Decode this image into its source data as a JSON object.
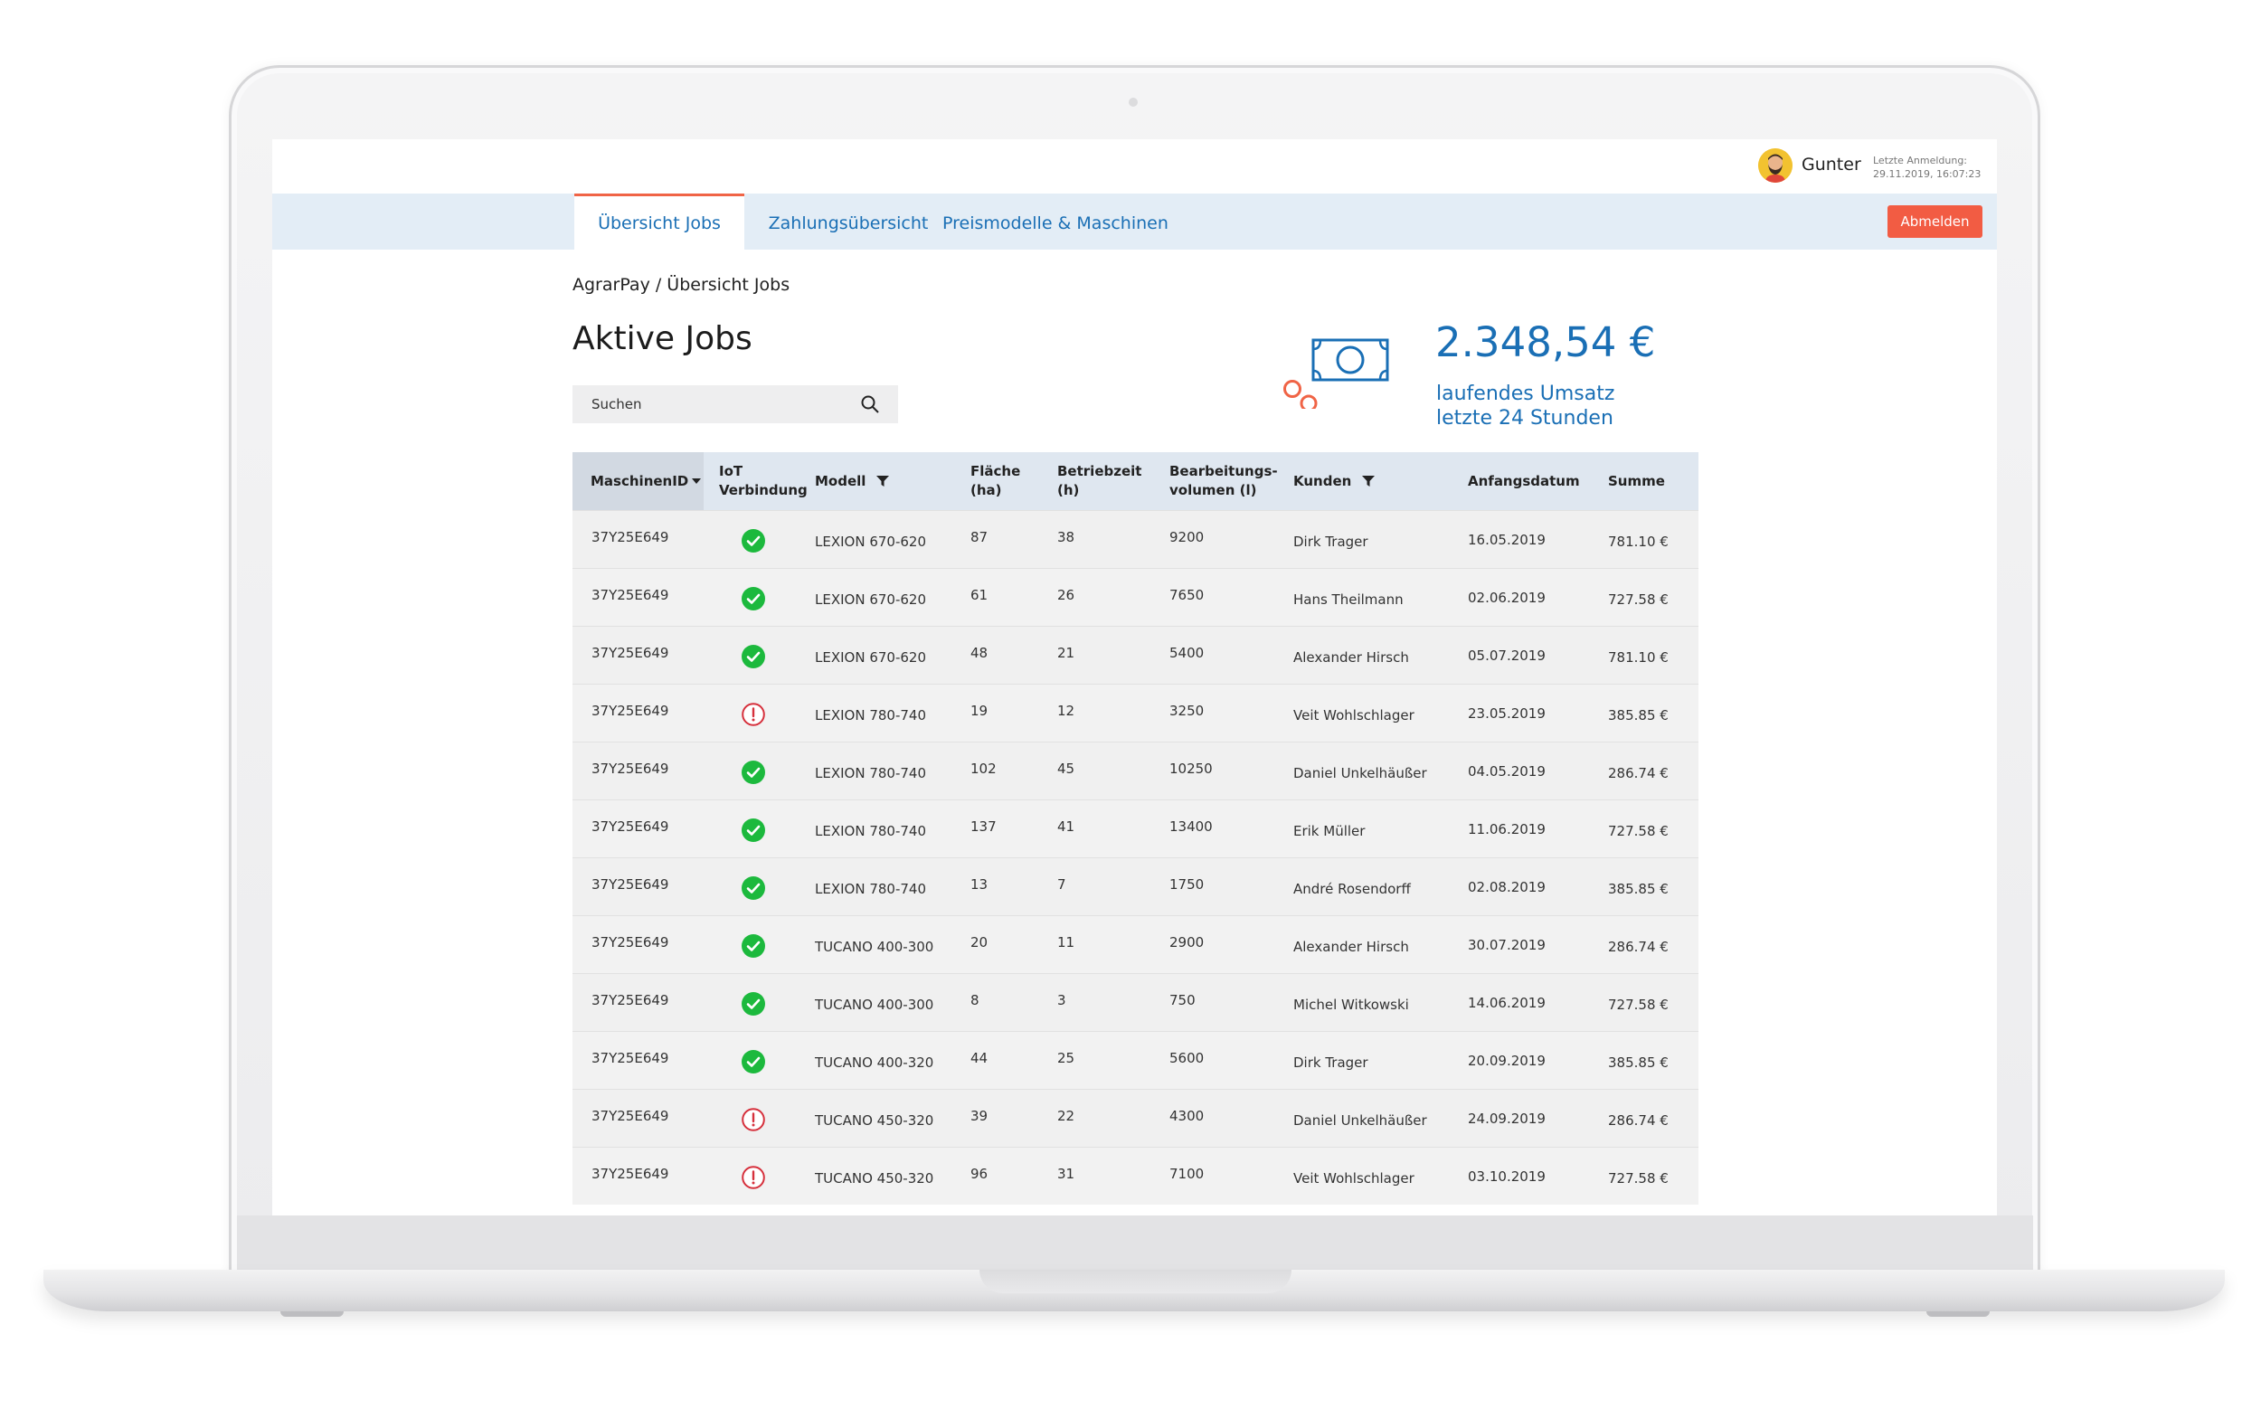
{
  "colors": {
    "accent": "#1a6fb5",
    "logout": "#f25c43",
    "active_tab_border": "#f06446",
    "ok": "#1cb93d",
    "error": "#d6303c"
  },
  "user": {
    "name": "Gunter",
    "last_login_label": "Letzte Anmeldung:",
    "last_login_value": "29.11.2019, 16:07:23",
    "avatar_icon": "user-avatar"
  },
  "nav": {
    "tabs": [
      {
        "label": "Übersicht Jobs",
        "active": true
      },
      {
        "label": "Zahlungsübersicht",
        "active": false
      },
      {
        "label": "Preismodelle & Maschinen",
        "active": false
      }
    ],
    "logout_label": "Abmelden"
  },
  "breadcrumb": "AgrarPay / Übersicht Jobs",
  "page_title": "Aktive Jobs",
  "search": {
    "label": "Suchen",
    "icon": "search-icon"
  },
  "revenue": {
    "amount": "2.348,54 €",
    "label_line1": "laufendes Umsatz",
    "label_line2": "letzte 24 Stunden",
    "icon": "money-icon"
  },
  "table": {
    "columns": [
      {
        "key": "id",
        "label": "MaschinenID",
        "sort": "desc"
      },
      {
        "key": "iot",
        "label_line1": "IoT",
        "label_line2": "Verbindung"
      },
      {
        "key": "model",
        "label": "Modell",
        "filter": true
      },
      {
        "key": "area",
        "label_line1": "Fläche",
        "label_line2": "(ha)"
      },
      {
        "key": "time",
        "label_line1": "Betriebzeit",
        "label_line2": "(h)"
      },
      {
        "key": "volume",
        "label_line1": "Bearbeitungs-",
        "label_line2": "volumen (l)"
      },
      {
        "key": "customer",
        "label": "Kunden",
        "filter": true
      },
      {
        "key": "date",
        "label": "Anfangsdatum"
      },
      {
        "key": "sum",
        "label": "Summe"
      }
    ],
    "rows": [
      {
        "id": "37Y25E649",
        "iot": "ok",
        "model": "LEXION 670-620",
        "area": "87",
        "time": "38",
        "volume": "9200",
        "customer": "Dirk Trager",
        "date": "16.05.2019",
        "sum": "781.10 €"
      },
      {
        "id": "37Y25E649",
        "iot": "ok",
        "model": "LEXION 670-620",
        "area": "61",
        "time": "26",
        "volume": "7650",
        "customer": "Hans Theilmann",
        "date": "02.06.2019",
        "sum": "727.58 €"
      },
      {
        "id": "37Y25E649",
        "iot": "ok",
        "model": "LEXION 670-620",
        "area": "48",
        "time": "21",
        "volume": "5400",
        "customer": "Alexander Hirsch",
        "date": "05.07.2019",
        "sum": "781.10 €"
      },
      {
        "id": "37Y25E649",
        "iot": "error",
        "model": "LEXION 780-740",
        "area": "19",
        "time": "12",
        "volume": "3250",
        "customer": "Veit Wohlschlager",
        "date": "23.05.2019",
        "sum": "385.85 €"
      },
      {
        "id": "37Y25E649",
        "iot": "ok",
        "model": "LEXION 780-740",
        "area": "102",
        "time": "45",
        "volume": "10250",
        "customer": "Daniel Unkelhäußer",
        "date": "04.05.2019",
        "sum": "286.74 €"
      },
      {
        "id": "37Y25E649",
        "iot": "ok",
        "model": "LEXION 780-740",
        "area": "137",
        "time": "41",
        "volume": "13400",
        "customer": "Erik Müller",
        "date": "11.06.2019",
        "sum": "727.58 €"
      },
      {
        "id": "37Y25E649",
        "iot": "ok",
        "model": "LEXION 780-740",
        "area": "13",
        "time": "7",
        "volume": "1750",
        "customer": "André Rosendorff",
        "date": "02.08.2019",
        "sum": "385.85 €"
      },
      {
        "id": "37Y25E649",
        "iot": "ok",
        "model": "TUCANO 400-300",
        "area": "20",
        "time": "11",
        "volume": "2900",
        "customer": "Alexander Hirsch",
        "date": "30.07.2019",
        "sum": "286.74 €"
      },
      {
        "id": "37Y25E649",
        "iot": "ok",
        "model": "TUCANO 400-300",
        "area": "8",
        "time": "3",
        "volume": "750",
        "customer": "Michel Witkowski",
        "date": "14.06.2019",
        "sum": "727.58 €"
      },
      {
        "id": "37Y25E649",
        "iot": "ok",
        "model": "TUCANO 400-320",
        "area": "44",
        "time": "25",
        "volume": "5600",
        "customer": "Dirk Trager",
        "date": "20.09.2019",
        "sum": "385.85 €"
      },
      {
        "id": "37Y25E649",
        "iot": "error",
        "model": "TUCANO 450-320",
        "area": "39",
        "time": "22",
        "volume": "4300",
        "customer": "Daniel Unkelhäußer",
        "date": "24.09.2019",
        "sum": "286.74 €"
      },
      {
        "id": "37Y25E649",
        "iot": "error",
        "model": "TUCANO 450-320",
        "area": "96",
        "time": "31",
        "volume": "7100",
        "customer": "Veit Wohlschlager",
        "date": "03.10.2019",
        "sum": "727.58 €"
      }
    ]
  }
}
